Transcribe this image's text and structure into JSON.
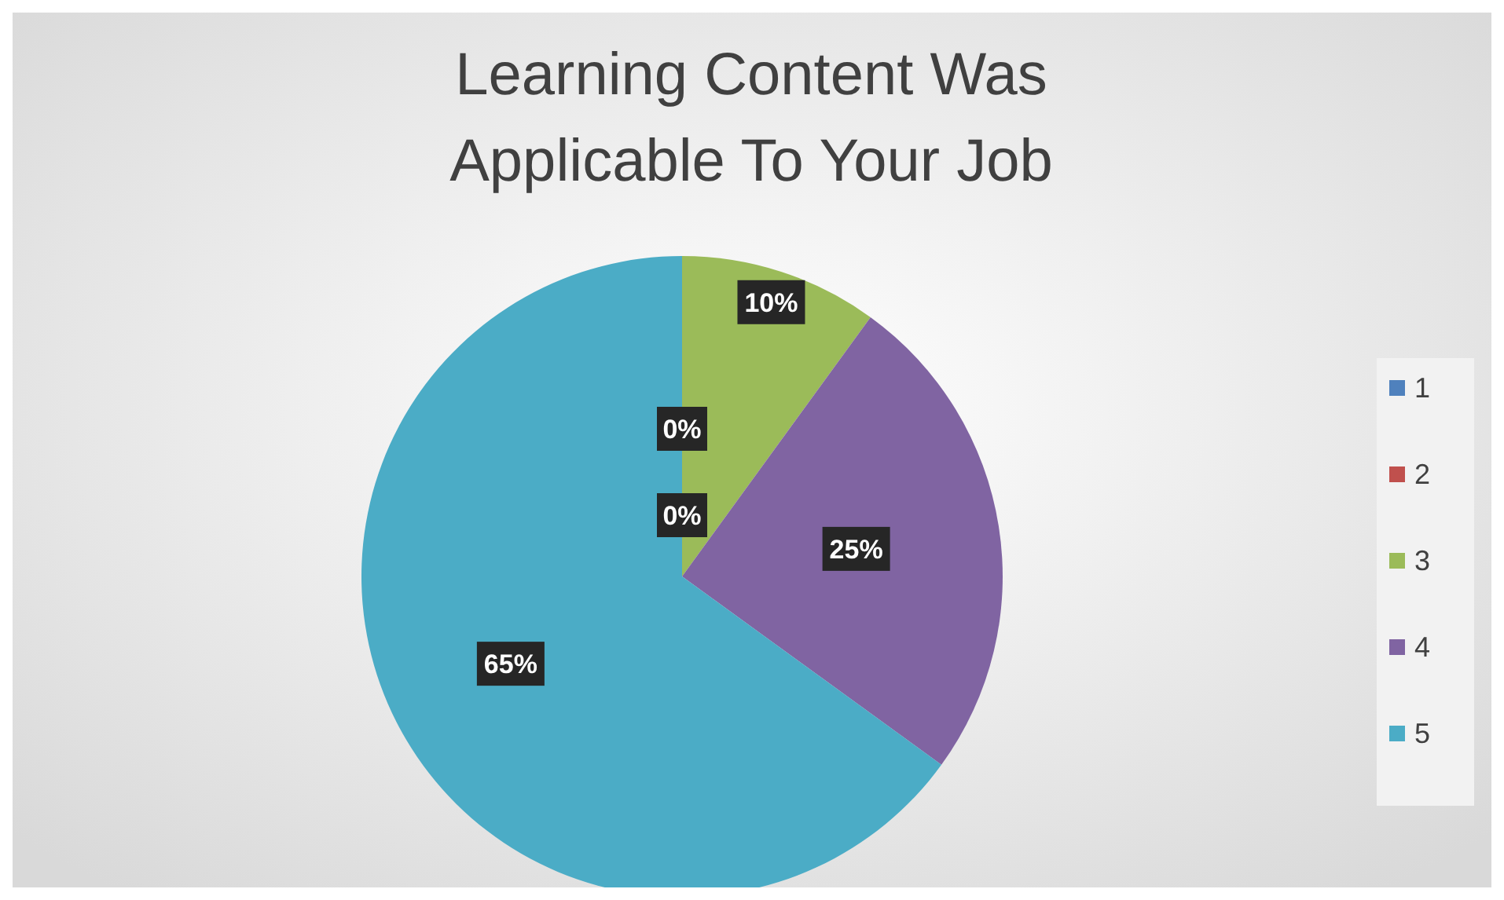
{
  "chart_data": {
    "type": "pie",
    "title": "Learning Content Was Applicable To Your Job",
    "categories": [
      "1",
      "2",
      "3",
      "4",
      "5"
    ],
    "values": [
      0,
      0,
      10,
      25,
      65
    ],
    "colors": [
      "#4f81bd",
      "#c0504d",
      "#9bbb59",
      "#8064a2",
      "#4bacc6"
    ],
    "value_labels": [
      "0%",
      "0%",
      "10%",
      "25%",
      "65%"
    ],
    "legend": "right"
  }
}
